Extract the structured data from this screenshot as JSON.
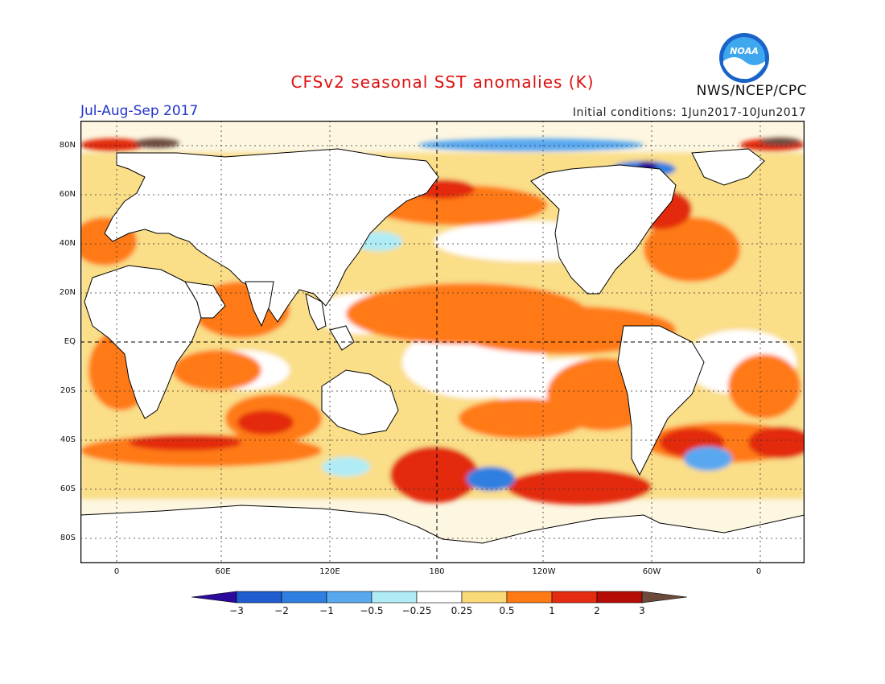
{
  "header": {
    "title": "CFSv2 seasonal SST anomalies (K)",
    "season": "Jul-Aug-Sep 2017",
    "initial_conditions": "Initial conditions: 1Jun2017-10Jun2017",
    "agency": "NWS/NCEP/CPC",
    "logo_text": "NOAA"
  },
  "map": {
    "lat_labels": [
      "80N",
      "60N",
      "40N",
      "20N",
      "EQ",
      "20S",
      "40S",
      "60S",
      "80S"
    ],
    "lon_labels": [
      "0",
      "60E",
      "120E",
      "180",
      "120W",
      "60W",
      "0"
    ]
  },
  "legend": {
    "labels": [
      "-3",
      "-2",
      "-1",
      "-0.5",
      "-0.25",
      "0.25",
      "0.5",
      "1",
      "2",
      "3"
    ],
    "colors": [
      "#2b0a9c",
      "#1f5ccf",
      "#2e7fe0",
      "#58a8f0",
      "#b0ecf6",
      "#ffffff",
      "#f9d978",
      "#ff7a12",
      "#e32c10",
      "#b50d06",
      "#6b4a3c"
    ]
  },
  "colors": {
    "land": "#ffffff",
    "title": "#dd1111",
    "season": "#2233cc"
  }
}
